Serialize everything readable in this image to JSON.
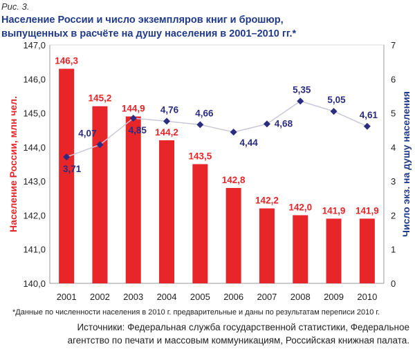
{
  "figure_label": "Рис. 3.",
  "title_line1": "Население России и число экземпляров книг и брошюр,",
  "title_line2": "выпущенных в расчёте на душу населения в 2001–2010 гг.*",
  "footnote": "*Данные по численности населения в 2010 г. предварительные и даны по результатам переписи 2010 г.",
  "sources_line1": "Источники: Федеральная служба государственной статистики, Федеральное",
  "sources_line2": "агентство по печати и массовым коммуникациям, Российская книжная палата.",
  "chart_data": {
    "type": "bar+line",
    "categories": [
      "2001",
      "2002",
      "2003",
      "2004",
      "2005",
      "2006",
      "2007",
      "2008",
      "2009",
      "2010"
    ],
    "series": [
      {
        "name": "Население России, млн чел.",
        "type": "bar",
        "axis": "left",
        "color": "#e8262a",
        "values": [
          146.3,
          145.2,
          144.9,
          144.2,
          143.5,
          142.8,
          142.2,
          142.0,
          141.9,
          141.9
        ],
        "labels": [
          "146,3",
          "145,2",
          "144,9",
          "144,2",
          "143,5",
          "142,8",
          "142,2",
          "142,0",
          "141,9",
          "141,9"
        ]
      },
      {
        "name": "Число экз. на душу населения",
        "type": "line",
        "axis": "right",
        "color": "#2b2b80",
        "values": [
          3.71,
          4.07,
          4.85,
          4.76,
          4.66,
          4.44,
          4.68,
          5.35,
          5.05,
          4.61
        ],
        "labels": [
          "3,71",
          "4,07",
          "4,85",
          "4,76",
          "4,66",
          "4,44",
          "4,68",
          "5,35",
          "5,05",
          "4,61"
        ]
      }
    ],
    "ylabel_left": "Население России, млн чел.",
    "ylabel_right": "Число экз. на душу населения",
    "ylim_left": [
      140,
      147
    ],
    "ylim_right": [
      0,
      7
    ],
    "yticks_left": [
      "140,0",
      "141,0",
      "142,0",
      "143,0",
      "144,0",
      "145,0",
      "146,0",
      "147,0"
    ],
    "yticks_right": [
      "0",
      "1",
      "2",
      "3",
      "4",
      "5",
      "6",
      "7"
    ],
    "grid": false
  }
}
